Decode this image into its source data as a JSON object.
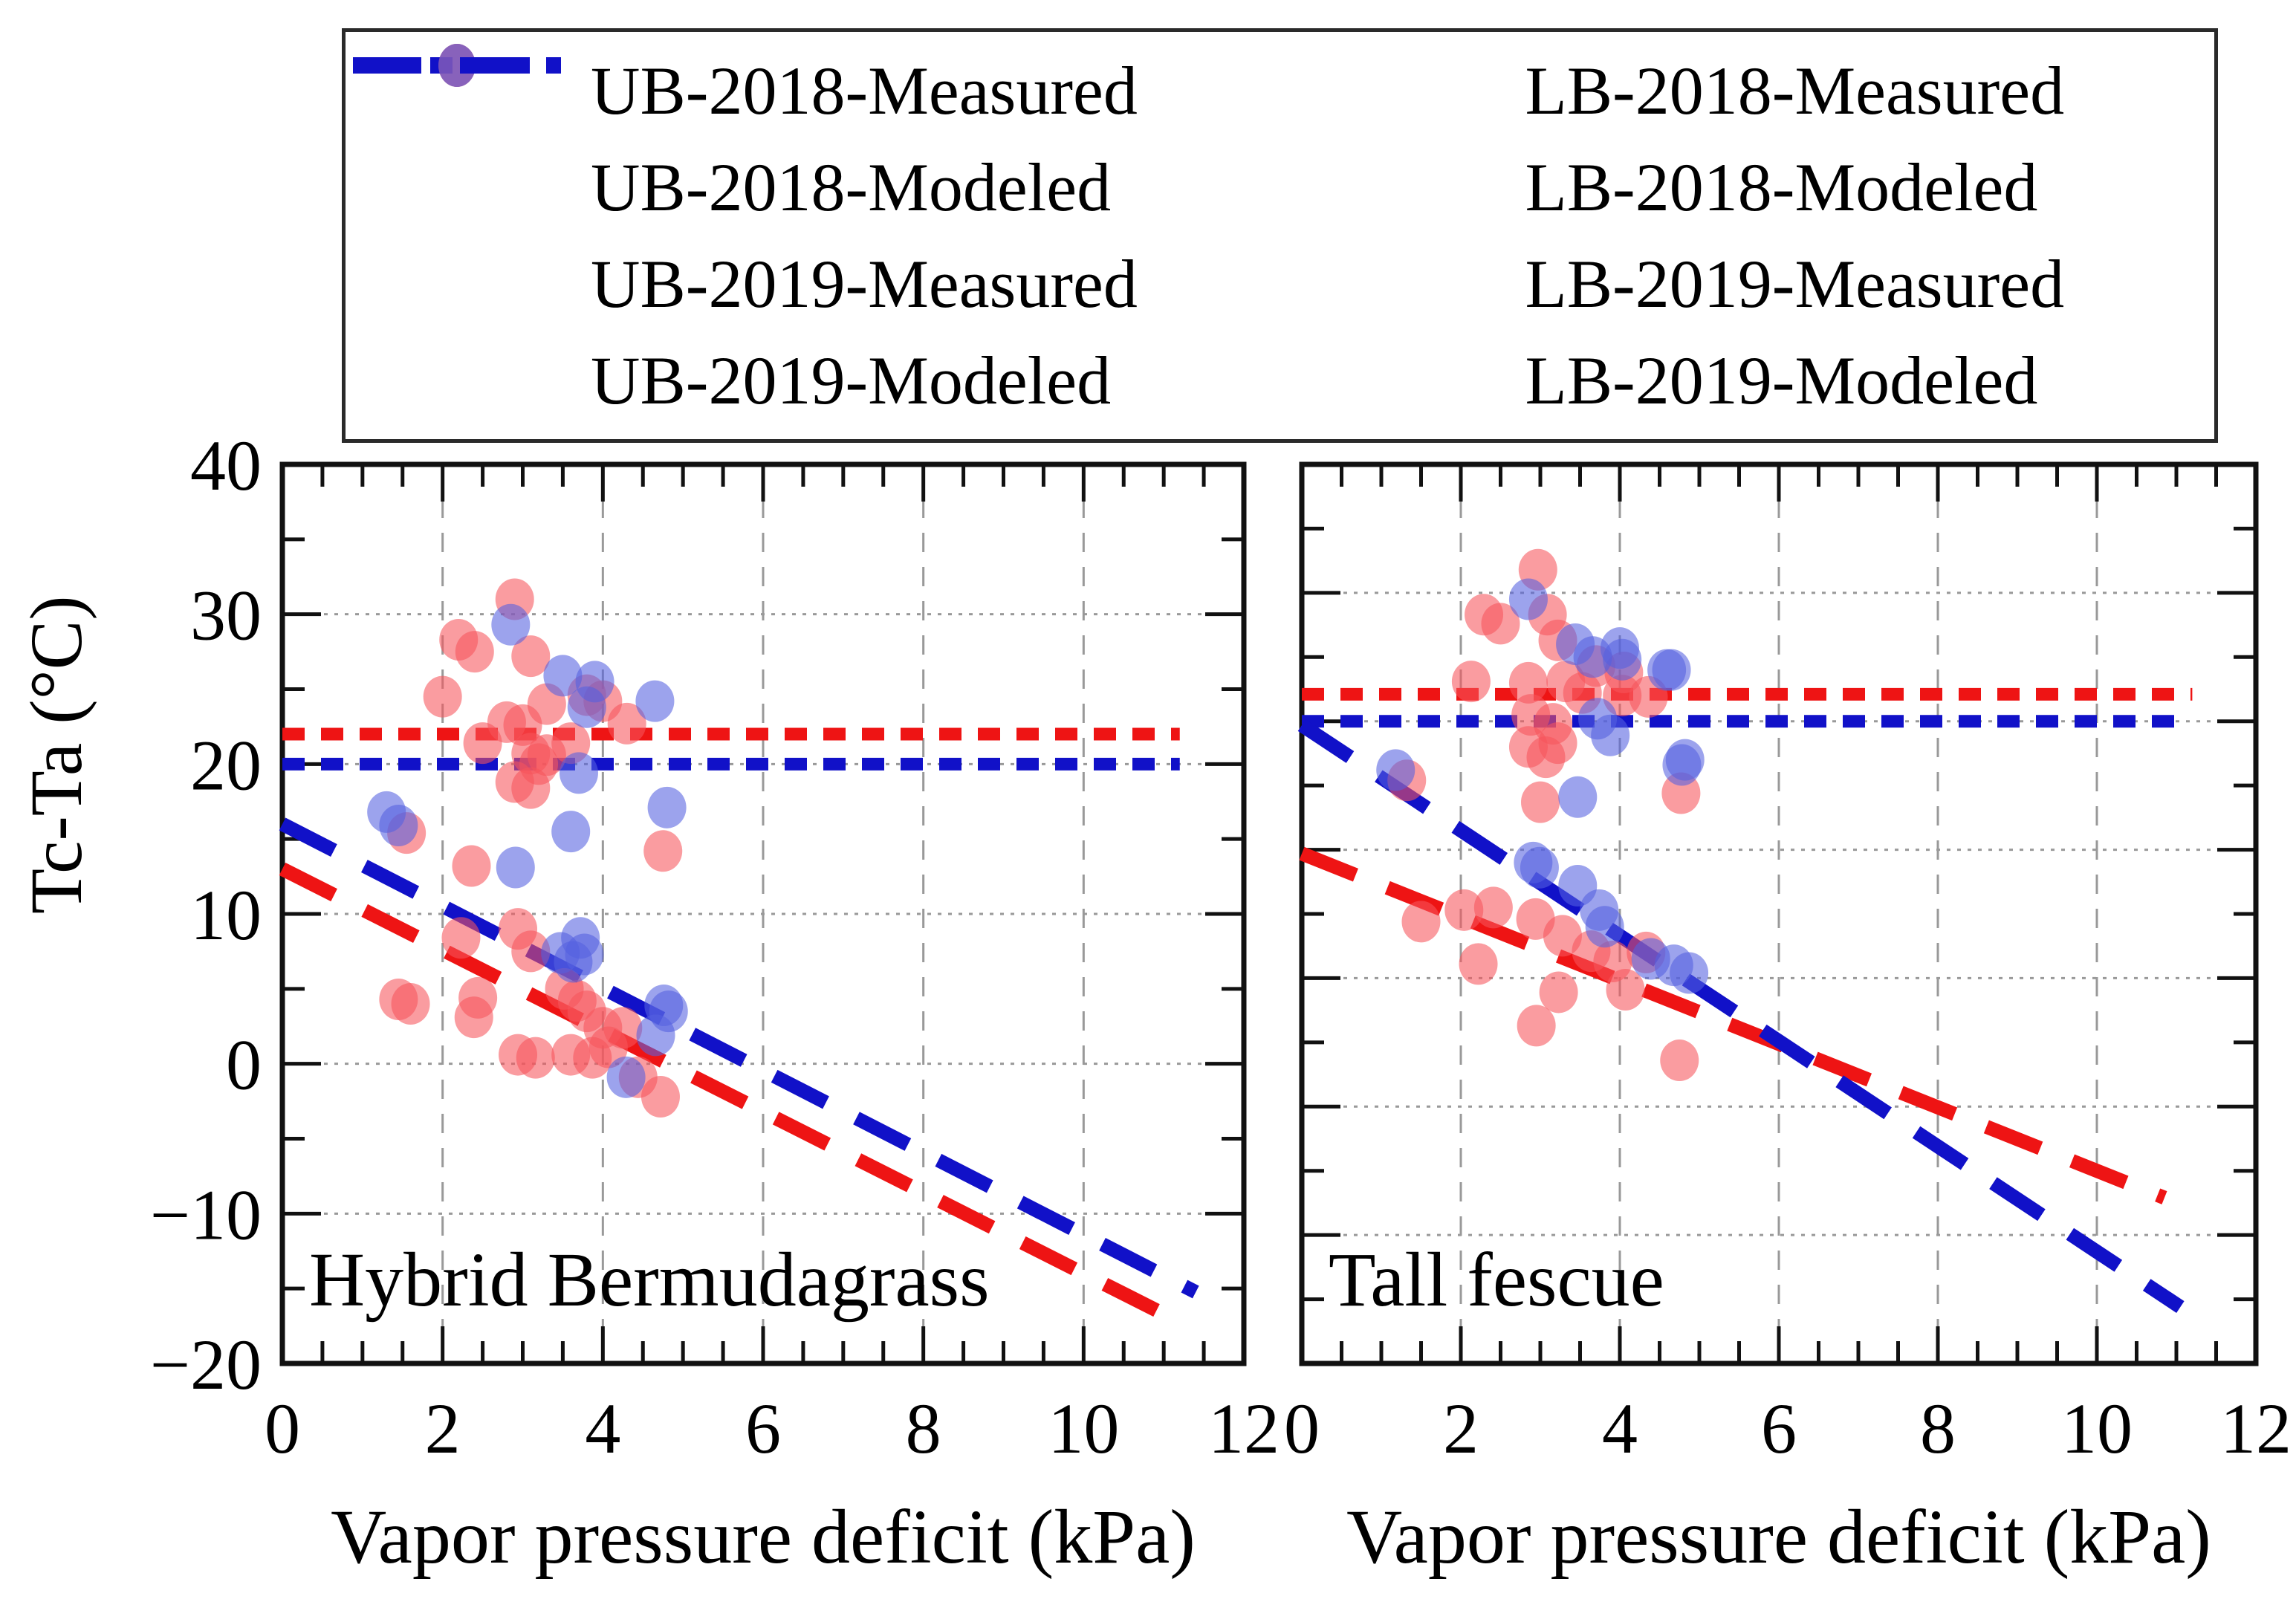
{
  "y_axis_label": "Tc-Ta (°C)",
  "x_axis_label": "Vapor pressure deficit (kPa)",
  "colors": {
    "measured_2018": "#f7545c",
    "measured_2019": "#5560e0",
    "modeled_2018": "#ee1414",
    "modeled_2019": "#1111c8",
    "grid": "#999999",
    "axis": "#111111",
    "point_opacity": 0.58
  },
  "legend": {
    "columns": [
      [
        {
          "label": "UB-2018-Measured",
          "marker": "dot",
          "color": "#f7545c"
        },
        {
          "label": "UB-2018-Modeled",
          "marker": "dash-short",
          "color": "#ee1414"
        },
        {
          "label": "UB-2019-Measured",
          "marker": "dot",
          "color": "#5560e0"
        },
        {
          "label": "UB-2019-Modeled",
          "marker": "dash-short",
          "color": "#1111c8"
        }
      ],
      [
        {
          "label": "LB-2018-Measured",
          "marker": "dot",
          "color": "#f7545c"
        },
        {
          "label": "LB-2018-Modeled",
          "marker": "dash-long",
          "color": "#ee1414"
        },
        {
          "label": "LB-2019-Measured",
          "marker": "dot",
          "color": "#5560e0"
        },
        {
          "label": "LB-2019-Modeled",
          "marker": "dash-long",
          "color": "#1111c8"
        }
      ]
    ]
  },
  "chart_data": [
    {
      "type": "scatter",
      "title": "Hybrid Bermudagrass",
      "xlabel": "Vapor pressure deficit (kPa)",
      "ylabel": "Tc-Ta (°C)",
      "xlim": [
        0,
        12
      ],
      "ylim": [
        -20,
        40
      ],
      "x_tick_labels": [
        "0",
        "2",
        "4",
        "6",
        "8",
        "10",
        "12"
      ],
      "x_tick_values": [
        0,
        2,
        4,
        6,
        8,
        10,
        12
      ],
      "y_tick_labels": [
        "40",
        "30",
        "20",
        "10",
        "0",
        "−10",
        "−20"
      ],
      "y_tick_values": [
        40,
        30,
        20,
        10,
        0,
        -10,
        -20
      ],
      "x_minor_step": 0.5,
      "y_minor_step": 5,
      "grid_x": [
        2,
        4,
        6,
        8,
        10
      ],
      "grid_y": [
        30,
        20,
        10,
        0,
        -10
      ],
      "series": [
        {
          "name": "UB-2018-Modeled",
          "kind": "hline",
          "y": 22,
          "x0": 0,
          "x1": 11.2,
          "color": "#ee1414",
          "dash": "short"
        },
        {
          "name": "UB-2019-Modeled",
          "kind": "hline",
          "y": 20,
          "x0": 0,
          "x1": 11.2,
          "color": "#1111c8",
          "dash": "short"
        },
        {
          "name": "LB-2018-Modeled",
          "kind": "trend",
          "intercept": 13.0,
          "slope": -2.7,
          "x0": 0,
          "x1": 11.2,
          "color": "#ee1414",
          "dash": "long"
        },
        {
          "name": "LB-2019-Modeled",
          "kind": "trend",
          "intercept": 16.0,
          "slope": -2.74,
          "x0": 0,
          "x1": 11.4,
          "color": "#1111c8",
          "dash": "long"
        },
        {
          "name": "UB-2018-Measured",
          "kind": "points",
          "color": "#f7545c",
          "points": [
            [
              2.9,
              31
            ],
            [
              2.2,
              28.3
            ],
            [
              2.4,
              27.5
            ],
            [
              3.1,
              27.2
            ],
            [
              2.0,
              24.5
            ],
            [
              3.3,
              24.0
            ],
            [
              3.8,
              24.6
            ],
            [
              4.0,
              24.2
            ],
            [
              2.8,
              22.8
            ],
            [
              3.0,
              22.6
            ],
            [
              4.3,
              22.7
            ],
            [
              2.5,
              21.4
            ],
            [
              3.1,
              20.7
            ],
            [
              3.3,
              20.6
            ],
            [
              3.6,
              21.4
            ],
            [
              3.2,
              20.0
            ],
            [
              2.9,
              18.8
            ],
            [
              3.1,
              18.4
            ],
            [
              1.55,
              15.4
            ],
            [
              2.36,
              13.2
            ],
            [
              4.75,
              14.2
            ]
          ]
        },
        {
          "name": "UB-2019-Measured",
          "kind": "points",
          "color": "#5560e0",
          "points": [
            [
              2.85,
              29.3
            ],
            [
              3.5,
              25.9
            ],
            [
              3.9,
              25.5
            ],
            [
              4.65,
              24.2
            ],
            [
              3.8,
              23.8
            ],
            [
              3.7,
              19.4
            ],
            [
              4.8,
              17.1
            ],
            [
              1.3,
              16.8
            ],
            [
              1.45,
              15.9
            ],
            [
              3.6,
              15.5
            ],
            [
              2.91,
              13.1
            ]
          ]
        },
        {
          "name": "LB-2018-Measured",
          "kind": "points",
          "color": "#f7545c",
          "points": [
            [
              1.45,
              4.3
            ],
            [
              1.6,
              4.0
            ],
            [
              2.23,
              8.4
            ],
            [
              2.94,
              9.0
            ],
            [
              3.1,
              7.5
            ],
            [
              2.44,
              4.4
            ],
            [
              2.39,
              3.1
            ],
            [
              2.94,
              0.6
            ],
            [
              3.16,
              0.4
            ],
            [
              3.52,
              5.0
            ],
            [
              3.68,
              4.2
            ],
            [
              3.8,
              3.5
            ],
            [
              4.0,
              2.4
            ],
            [
              4.25,
              2.4
            ],
            [
              3.6,
              0.6
            ],
            [
              3.87,
              0.4
            ],
            [
              4.07,
              1.1
            ],
            [
              4.44,
              -0.9
            ],
            [
              4.72,
              -2.2
            ]
          ]
        },
        {
          "name": "LB-2019-Measured",
          "kind": "points",
          "color": "#5560e0",
          "points": [
            [
              3.47,
              7.4
            ],
            [
              3.63,
              6.8
            ],
            [
              3.72,
              8.4
            ],
            [
              3.77,
              7.3
            ],
            [
              4.76,
              3.9
            ],
            [
              4.82,
              3.5
            ],
            [
              4.66,
              1.9
            ],
            [
              4.29,
              -0.9
            ]
          ]
        }
      ]
    },
    {
      "type": "scatter",
      "title": "Tall fescue",
      "xlabel": "Vapor pressure deficit (kPa)",
      "ylabel": "",
      "xlim": [
        0,
        12
      ],
      "ylim": [
        -30,
        40
      ],
      "x_tick_labels": [
        "0",
        "2",
        "4",
        "6",
        "8",
        "10",
        "12"
      ],
      "x_tick_values": [
        0,
        2,
        4,
        6,
        8,
        10,
        12
      ],
      "y_tick_labels": [],
      "y_tick_values": [
        40,
        30,
        20,
        10,
        0,
        -10,
        -20,
        -30
      ],
      "x_minor_step": 0.5,
      "y_minor_step": 5,
      "grid_x": [
        2,
        4,
        6,
        8,
        10
      ],
      "grid_y": [
        30,
        20,
        10,
        0,
        -10,
        -20
      ],
      "series": [
        {
          "name": "UB-2018-Modeled",
          "kind": "hline",
          "y": 22.1,
          "x0": 0,
          "x1": 11.2,
          "color": "#ee1414",
          "dash": "short"
        },
        {
          "name": "UB-2019-Modeled",
          "kind": "hline",
          "y": 20.0,
          "x0": 0,
          "x1": 11.15,
          "color": "#1111c8",
          "dash": "short"
        },
        {
          "name": "LB-2018-Modeled",
          "kind": "trend",
          "intercept": 9.7,
          "slope": -2.47,
          "x0": 0,
          "x1": 10.85,
          "color": "#ee1414",
          "dash": "long"
        },
        {
          "name": "LB-2019-Modeled",
          "kind": "trend",
          "intercept": 19.7,
          "slope": -4.1,
          "x0": 0,
          "x1": 11.05,
          "color": "#1111c8",
          "dash": "long"
        },
        {
          "name": "UB-2018-Measured",
          "kind": "points",
          "color": "#f7545c",
          "points": [
            [
              2.97,
              31.8
            ],
            [
              2.29,
              28.3
            ],
            [
              2.5,
              27.6
            ],
            [
              3.09,
              28.3
            ],
            [
              3.22,
              26.3
            ],
            [
              3.7,
              24.3
            ],
            [
              2.13,
              23.1
            ],
            [
              2.85,
              23.0
            ],
            [
              3.32,
              23.1
            ],
            [
              3.53,
              22.2
            ],
            [
              4.03,
              22.0
            ],
            [
              4.36,
              21.9
            ],
            [
              2.88,
              20.5
            ],
            [
              3.16,
              19.8
            ],
            [
              3.22,
              18.3
            ],
            [
              3.07,
              17.2
            ],
            [
              2.85,
              18.0
            ],
            [
              3.0,
              13.7
            ],
            [
              4.05,
              23.8
            ],
            [
              4.77,
              14.4
            ],
            [
              1.32,
              15.4
            ]
          ]
        },
        {
          "name": "UB-2019-Measured",
          "kind": "points",
          "color": "#5560e0",
          "points": [
            [
              2.85,
              29.5
            ],
            [
              3.44,
              26.0
            ],
            [
              3.66,
              25.0
            ],
            [
              4.03,
              24.8
            ],
            [
              4.59,
              24.0
            ],
            [
              4.0,
              25.7
            ],
            [
              4.65,
              24.0
            ],
            [
              3.72,
              20.2
            ],
            [
              3.88,
              18.9
            ],
            [
              4.78,
              16.6
            ],
            [
              4.82,
              17.0
            ],
            [
              3.47,
              14.1
            ],
            [
              1.18,
              16.2
            ]
          ]
        },
        {
          "name": "LB-2018-Measured",
          "kind": "points",
          "color": "#f7545c",
          "points": [
            [
              1.5,
              4.4
            ],
            [
              2.04,
              5.3
            ],
            [
              2.41,
              5.5
            ],
            [
              2.94,
              4.6
            ],
            [
              3.28,
              3.3
            ],
            [
              3.64,
              2.1
            ],
            [
              3.91,
              1.3
            ],
            [
              4.33,
              2.0
            ],
            [
              2.22,
              1.1
            ],
            [
              3.23,
              -1.1
            ],
            [
              2.95,
              -3.7
            ],
            [
              4.07,
              -0.9
            ],
            [
              4.75,
              -6.4
            ]
          ]
        },
        {
          "name": "LB-2019-Measured",
          "kind": "points",
          "color": "#5560e0",
          "points": [
            [
              2.91,
              9.0
            ],
            [
              2.99,
              8.6
            ],
            [
              3.47,
              7.2
            ],
            [
              3.74,
              5.3
            ],
            [
              3.81,
              4.0
            ],
            [
              4.39,
              1.5
            ],
            [
              4.68,
              1.0
            ],
            [
              4.87,
              0.4
            ]
          ]
        }
      ]
    }
  ]
}
